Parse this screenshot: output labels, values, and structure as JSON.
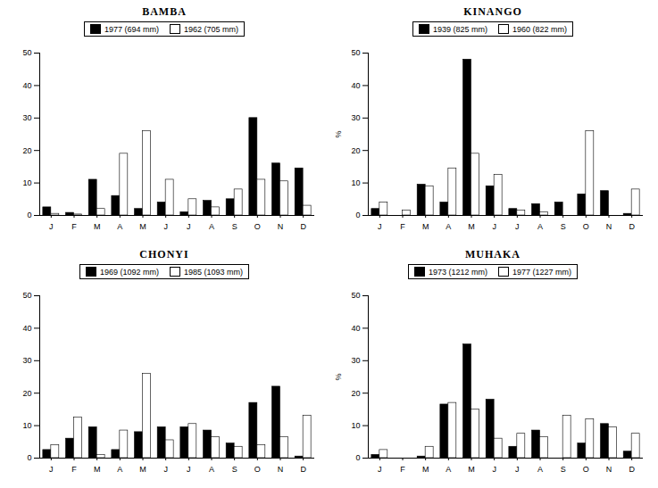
{
  "chart_data": [
    {
      "type": "bar",
      "title": "BAMBA",
      "categories": [
        "J",
        "F",
        "M",
        "A",
        "M",
        "J",
        "J",
        "A",
        "S",
        "O",
        "N",
        "D"
      ],
      "series": [
        {
          "name": "1977 (694 mm)",
          "color": "#000000",
          "values": [
            2.5,
            0.8,
            11,
            6,
            2,
            4,
            1,
            4.5,
            5,
            30,
            16,
            14.5
          ]
        },
        {
          "name": "1962 (705 mm)",
          "color": "#ffffff",
          "values": [
            0.5,
            0.3,
            2,
            19,
            26,
            11,
            5,
            2.5,
            8,
            11,
            10.5,
            3
          ]
        }
      ],
      "ylim": [
        0,
        50
      ],
      "yticks": [
        0,
        10,
        20,
        30,
        40,
        50
      ],
      "legend": "top"
    },
    {
      "type": "bar",
      "title": "KINANGO",
      "categories": [
        "J",
        "F",
        "M",
        "A",
        "M",
        "J",
        "J",
        "A",
        "S",
        "O",
        "N",
        "D"
      ],
      "series": [
        {
          "name": "1939 (825 mm)",
          "color": "#000000",
          "values": [
            2,
            0,
            9.5,
            4,
            48,
            9,
            2,
            3.5,
            4,
            6.5,
            7.5,
            0.5
          ]
        },
        {
          "name": "1960 (822 mm)",
          "color": "#ffffff",
          "values": [
            4,
            1.5,
            9,
            14.5,
            19,
            12.5,
            1.5,
            1,
            0,
            26,
            0,
            8
          ]
        }
      ],
      "ylim": [
        0,
        50
      ],
      "yticks": [
        0,
        10,
        20,
        30,
        40,
        50
      ],
      "ylabel": "%",
      "legend": "top"
    },
    {
      "type": "bar",
      "title": "CHONYI",
      "categories": [
        "J",
        "F",
        "M",
        "A",
        "M",
        "J",
        "J",
        "A",
        "S",
        "O",
        "N",
        "D"
      ],
      "series": [
        {
          "name": "1969 (1092 mm)",
          "color": "#000000",
          "values": [
            2.5,
            6,
            9.5,
            2.5,
            8,
            9.5,
            9.5,
            8.5,
            4.5,
            17,
            22,
            0.5
          ]
        },
        {
          "name": "1985 (1093 mm)",
          "color": "#ffffff",
          "values": [
            4,
            12.5,
            1,
            8.5,
            26,
            5.5,
            10.5,
            6.5,
            3.5,
            4,
            6.5,
            13
          ]
        }
      ],
      "ylim": [
        0,
        50
      ],
      "yticks": [
        0,
        10,
        20,
        30,
        40,
        50
      ],
      "legend": "top"
    },
    {
      "type": "bar",
      "title": "MUHAKA",
      "categories": [
        "J",
        "F",
        "M",
        "A",
        "M",
        "J",
        "J",
        "A",
        "S",
        "O",
        "N",
        "D"
      ],
      "series": [
        {
          "name": "1973 (1212 mm)",
          "color": "#000000",
          "values": [
            1,
            0,
            0.5,
            16.5,
            35,
            18,
            3.5,
            8.5,
            0,
            4.5,
            10.5,
            2
          ]
        },
        {
          "name": "1977 (1227 mm)",
          "color": "#ffffff",
          "values": [
            2.5,
            0,
            3.5,
            17,
            15,
            6,
            7.5,
            6.5,
            13,
            12,
            9.5,
            7.5
          ]
        }
      ],
      "ylim": [
        0,
        50
      ],
      "yticks": [
        0,
        10,
        20,
        30,
        40,
        50
      ],
      "ylabel": "%",
      "legend": "top"
    }
  ]
}
